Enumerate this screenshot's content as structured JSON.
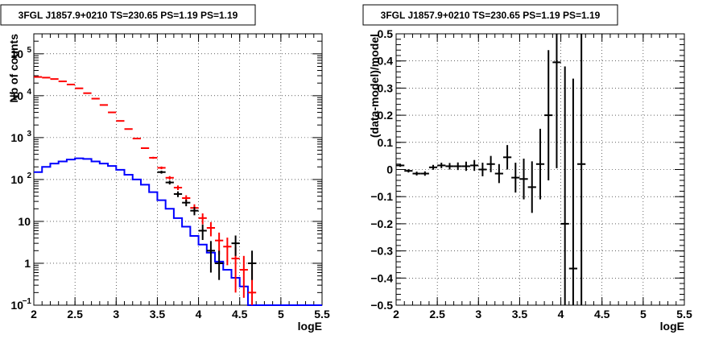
{
  "chart_data": [
    {
      "type": "line",
      "title": "3FGL J1857.9+0210 TS=230.65 PS=1.19 PS=1.19",
      "xlabel": "logE",
      "ylabel": "Nb of counts",
      "xlim": [
        2,
        5.5
      ],
      "ylim": [
        0.1,
        300000
      ],
      "yscale": "log",
      "grid": true,
      "x_ticks": [
        "2",
        "2.5",
        "3",
        "3.5",
        "4",
        "4.5",
        "5",
        "5.5"
      ],
      "y_ticks": [
        {
          "value": 0.1,
          "label": "10",
          "exp": "−1"
        },
        {
          "value": 1,
          "label": "1",
          "exp": ""
        },
        {
          "value": 10,
          "label": "10",
          "exp": ""
        },
        {
          "value": 100,
          "label": "10",
          "exp": "2"
        },
        {
          "value": 1000,
          "label": "10",
          "exp": "3"
        },
        {
          "value": 10000,
          "label": "10",
          "exp": "4"
        },
        {
          "value": 100000,
          "label": "10",
          "exp": "5"
        }
      ],
      "series": [
        {
          "color": "#0000ff",
          "style": "step",
          "bin_width": 0.1,
          "x": [
            2.0,
            2.1,
            2.2,
            2.3,
            2.4,
            2.5,
            2.6,
            2.7,
            2.8,
            2.9,
            3.0,
            3.1,
            3.2,
            3.3,
            3.4,
            3.5,
            3.6,
            3.7,
            3.8,
            3.9,
            4.0,
            4.1,
            4.2,
            4.3,
            4.4,
            4.5,
            4.6,
            4.7,
            4.8,
            4.9,
            5.0,
            5.1,
            5.2,
            5.3,
            5.4
          ],
          "y": [
            150,
            200,
            240,
            270,
            300,
            320,
            310,
            270,
            240,
            210,
            170,
            130,
            100,
            75,
            50,
            32,
            20,
            12,
            7.5,
            4.5,
            2.8,
            1.8,
            1.1,
            0.7,
            0.45,
            0.28,
            0.1,
            0.1,
            0.1,
            0.1,
            0.1,
            0.1,
            0.1,
            0.1,
            0.1
          ]
        },
        {
          "color": "#ff0000",
          "style": "errorbar",
          "x": [
            2.05,
            2.15,
            2.25,
            2.35,
            2.45,
            2.55,
            2.65,
            2.75,
            2.85,
            2.95,
            3.05,
            3.15,
            3.25,
            3.35,
            3.45,
            3.55,
            3.65,
            3.75,
            3.85,
            3.95,
            4.05,
            4.15,
            4.25,
            4.35,
            4.45,
            4.55,
            4.65
          ],
          "y": [
            28000,
            27000,
            25000,
            22000,
            18500,
            15000,
            11500,
            8500,
            6000,
            4000,
            2500,
            1600,
            950,
            560,
            330,
            190,
            110,
            64,
            36,
            21,
            12,
            7,
            3.5,
            2.5,
            1.3,
            0.7,
            0.2
          ],
          "yerr_lo": [
            170,
            165,
            160,
            150,
            135,
            125,
            110,
            95,
            80,
            65,
            50,
            40,
            31,
            24,
            18,
            14,
            10.5,
            8,
            6,
            4.6,
            3.5,
            2.6,
            1.9,
            1.6,
            1.1,
            0.55,
            0.15
          ],
          "yerr_hi": [
            170,
            165,
            160,
            150,
            135,
            125,
            110,
            95,
            80,
            65,
            50,
            40,
            31,
            24,
            18,
            14,
            10.5,
            8,
            6,
            4.6,
            3.5,
            2.6,
            1.9,
            1.6,
            1.1,
            0.8,
            0.5
          ]
        },
        {
          "color": "#000000",
          "style": "errorbar",
          "x": [
            3.55,
            3.65,
            3.75,
            3.85,
            3.95,
            4.05,
            4.15,
            4.25,
            4.45,
            4.65
          ],
          "y": [
            150,
            85,
            45,
            28,
            18,
            6,
            2,
            1,
            3,
            1
          ],
          "yerr_lo": [
            12,
            9,
            7,
            5,
            4,
            2.4,
            1.4,
            0.6,
            1.5,
            0.6
          ],
          "yerr_hi": [
            12,
            9,
            7,
            5,
            4,
            2.4,
            1.4,
            1,
            1.6,
            1
          ]
        }
      ]
    },
    {
      "type": "scatter",
      "title": "3FGL J1857.9+0210 TS=230.65 PS=1.19 PS=1.19",
      "xlabel": "logE",
      "ylabel": "(data-model)/model",
      "xlim": [
        2,
        5.5
      ],
      "ylim": [
        -0.5,
        0.5
      ],
      "grid": true,
      "x_ticks": [
        "2",
        "2.5",
        "3",
        "3.5",
        "4",
        "4.5",
        "5",
        "5.5"
      ],
      "y_ticks": [
        "−0.5",
        "−0.4",
        "−0.3",
        "−0.2",
        "−0.1",
        "0",
        "0.1",
        "0.2",
        "0.3",
        "0.4",
        "0.5"
      ],
      "y_tick_values": [
        -0.5,
        -0.4,
        -0.3,
        -0.2,
        -0.1,
        0,
        0.1,
        0.2,
        0.3,
        0.4,
        0.5
      ],
      "series": [
        {
          "color": "#000000",
          "style": "errorbar",
          "x": [
            2.05,
            2.15,
            2.25,
            2.35,
            2.45,
            2.55,
            2.65,
            2.75,
            2.85,
            2.95,
            3.05,
            3.15,
            3.25,
            3.35,
            3.45,
            3.55,
            3.65,
            3.75,
            3.85,
            3.95,
            4.05,
            4.15,
            4.25
          ],
          "y": [
            0.015,
            -0.005,
            -0.015,
            -0.015,
            0.008,
            0.015,
            0.012,
            0.012,
            0.012,
            0.015,
            0.0,
            0.02,
            -0.015,
            0.045,
            -0.03,
            -0.035,
            -0.065,
            0.02,
            0.2,
            0.395,
            -0.2,
            -0.365,
            0.02
          ],
          "yerr": [
            0.005,
            0.006,
            0.007,
            0.008,
            0.009,
            0.01,
            0.012,
            0.014,
            0.017,
            0.02,
            0.025,
            0.03,
            0.035,
            0.045,
            0.055,
            0.075,
            0.095,
            0.13,
            0.24,
            0.39,
            0.58,
            0.7,
            0.85
          ]
        }
      ]
    }
  ]
}
